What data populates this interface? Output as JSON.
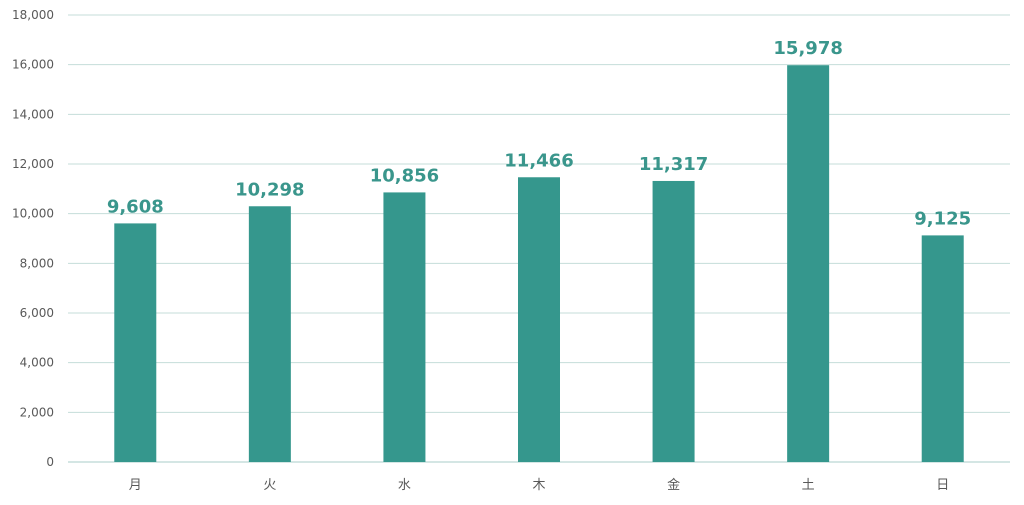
{
  "chart_data": {
    "type": "bar",
    "categories": [
      "月",
      "火",
      "水",
      "木",
      "金",
      "土",
      "日"
    ],
    "values": [
      9608,
      10298,
      10856,
      11466,
      11317,
      15978,
      9125
    ],
    "value_labels": [
      "9,608",
      "10,298",
      "10,856",
      "11,466",
      "11,317",
      "15,978",
      "9,125"
    ],
    "ylim": [
      0,
      18000
    ],
    "yticks": [
      0,
      2000,
      4000,
      6000,
      8000,
      10000,
      12000,
      14000,
      16000,
      18000
    ],
    "ytick_labels": [
      "0",
      "2,000",
      "4,000",
      "6,000",
      "8,000",
      "10,000",
      "12,000",
      "14,000",
      "16,000",
      "18,000"
    ],
    "grid": true,
    "legend": "none",
    "bar_color": "#35978d",
    "label_color": "#3a968c",
    "grid_color": "#c5ddd9"
  }
}
